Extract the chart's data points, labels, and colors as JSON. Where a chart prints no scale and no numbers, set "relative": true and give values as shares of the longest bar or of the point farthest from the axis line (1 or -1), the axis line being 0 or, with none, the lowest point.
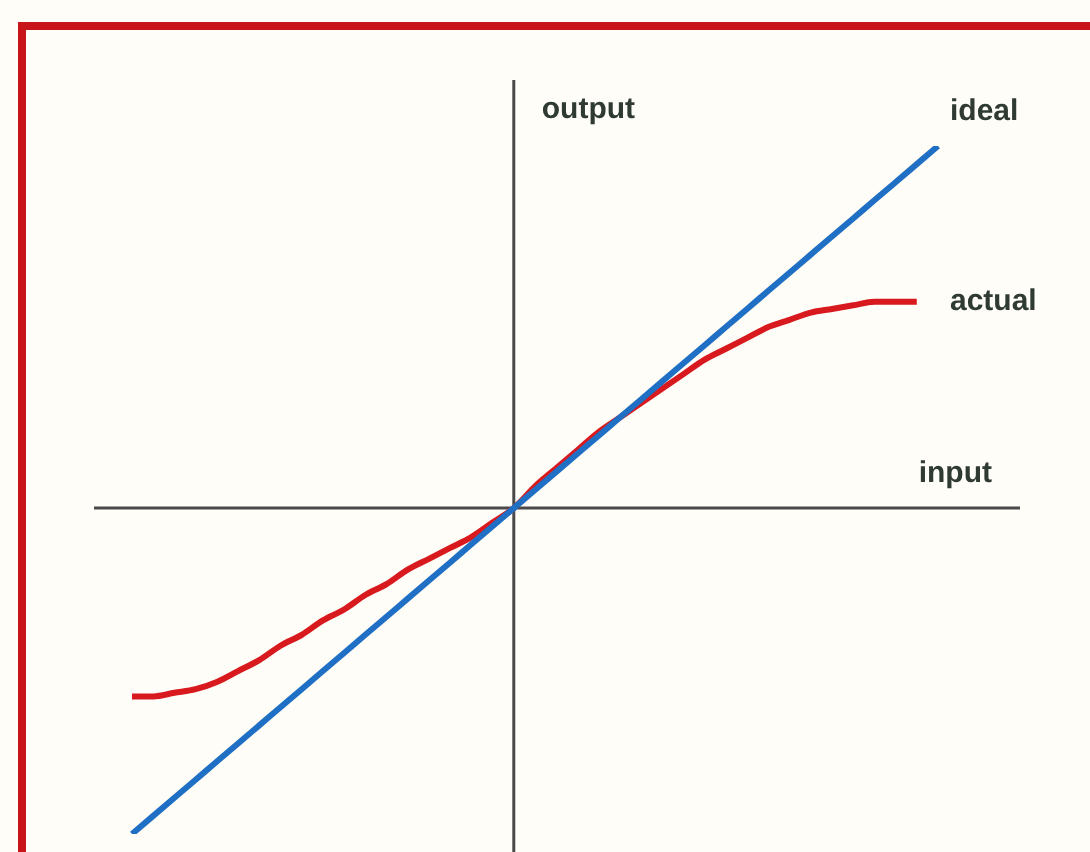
{
  "chart_data": {
    "type": "line",
    "relative": true,
    "xlabel": "input",
    "ylabel": "output",
    "line_style": "solid",
    "categories": [
      null,
      null,
      null,
      null,
      null,
      null,
      null,
      null,
      null,
      null,
      null,
      null,
      null,
      null,
      null,
      null,
      null,
      null,
      null,
      null,
      null,
      null,
      null,
      null,
      null,
      null,
      null,
      null,
      null,
      null,
      null,
      null,
      null,
      null,
      null,
      null,
      null,
      null,
      null
    ],
    "series": [
      {
        "name": "ideal",
        "color": "#1f6fc4",
        "values": [
          -0.9,
          -0.85,
          -0.8,
          -0.75,
          -0.7,
          -0.65,
          -0.6,
          -0.55,
          -0.5,
          -0.45,
          -0.4,
          -0.35,
          -0.3,
          -0.25,
          -0.2,
          -0.15,
          -0.1,
          -0.05,
          0,
          0.05,
          0.1,
          0.15,
          0.2,
          0.25,
          0.3,
          0.35,
          0.4,
          0.45,
          0.5,
          0.55,
          0.6,
          0.65,
          0.7,
          0.75,
          0.8,
          0.85,
          0.9,
          0.95,
          1
        ]
      },
      {
        "name": "actual",
        "color": "#d81a1f",
        "values": [
          -0.52,
          -0.52,
          -0.51,
          -0.5,
          -0.48,
          -0.45,
          -0.42,
          -0.38,
          -0.35,
          -0.31,
          -0.28,
          -0.24,
          -0.21,
          -0.17,
          -0.14,
          -0.11,
          -0.08,
          -0.04,
          0,
          0.06,
          0.11,
          0.16,
          0.21,
          0.25,
          0.29,
          0.33,
          0.37,
          0.41,
          0.44,
          0.47,
          0.5,
          0.52,
          0.54,
          0.55,
          0.56,
          0.57,
          0.57,
          0.57,
          null
        ]
      }
    ]
  }
}
